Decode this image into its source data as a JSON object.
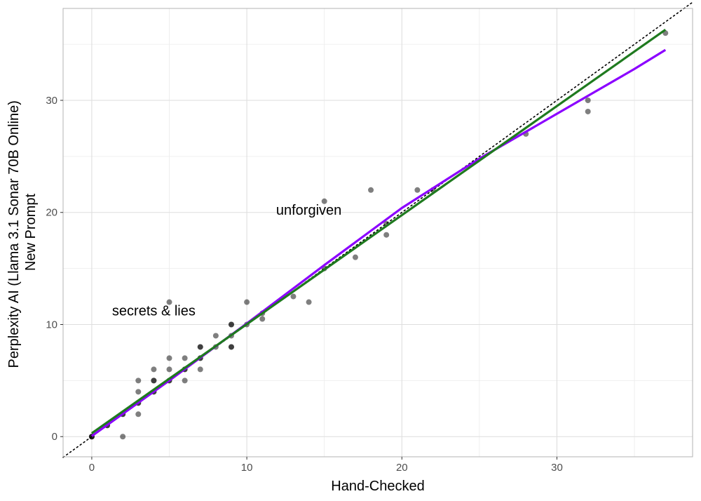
{
  "chart_data": {
    "type": "scatter",
    "xlabel": "Hand-Checked",
    "ylabel_lines": [
      "Perplexity AI (Llama 3.1 Sonar 70B Online)",
      "New Prompt"
    ],
    "xlim": [
      -1.85,
      38.75
    ],
    "ylim": [
      -1.8,
      38.2
    ],
    "x_ticks": [
      0,
      10,
      20,
      30
    ],
    "y_ticks": [
      0,
      10,
      20,
      30
    ],
    "x_tick_labels": [
      "0",
      "10",
      "20",
      "30"
    ],
    "y_tick_labels": [
      "0",
      "10",
      "20",
      "30"
    ],
    "grid": true,
    "legend": "none",
    "colors": {
      "points": "#000000",
      "smooth_fit": "#8b00ff",
      "linear_fit": "#1f7a1f",
      "identity": "#000000",
      "grid": "#ebebeb",
      "border": "#b3b3b3"
    },
    "points": [
      {
        "x": 0,
        "y": 0
      },
      {
        "x": 0,
        "y": 0
      },
      {
        "x": 0,
        "y": 0
      },
      {
        "x": 1,
        "y": 1
      },
      {
        "x": 1,
        "y": 1
      },
      {
        "x": 2,
        "y": 0
      },
      {
        "x": 2,
        "y": 2
      },
      {
        "x": 2,
        "y": 2
      },
      {
        "x": 3,
        "y": 2
      },
      {
        "x": 3,
        "y": 3
      },
      {
        "x": 3,
        "y": 3
      },
      {
        "x": 3,
        "y": 4
      },
      {
        "x": 3,
        "y": 5
      },
      {
        "x": 4,
        "y": 4
      },
      {
        "x": 4,
        "y": 4
      },
      {
        "x": 4,
        "y": 5
      },
      {
        "x": 4,
        "y": 5
      },
      {
        "x": 4,
        "y": 6
      },
      {
        "x": 5,
        "y": 5
      },
      {
        "x": 5,
        "y": 5
      },
      {
        "x": 5,
        "y": 6
      },
      {
        "x": 5,
        "y": 7
      },
      {
        "x": 5,
        "y": 12
      },
      {
        "x": 6,
        "y": 5
      },
      {
        "x": 6,
        "y": 6
      },
      {
        "x": 6,
        "y": 6
      },
      {
        "x": 6,
        "y": 7
      },
      {
        "x": 7,
        "y": 6
      },
      {
        "x": 7,
        "y": 7
      },
      {
        "x": 7,
        "y": 7
      },
      {
        "x": 7,
        "y": 8
      },
      {
        "x": 7,
        "y": 8
      },
      {
        "x": 8,
        "y": 8
      },
      {
        "x": 8,
        "y": 9
      },
      {
        "x": 9,
        "y": 8
      },
      {
        "x": 9,
        "y": 8
      },
      {
        "x": 9,
        "y": 9
      },
      {
        "x": 9,
        "y": 10
      },
      {
        "x": 9,
        "y": 10
      },
      {
        "x": 10,
        "y": 10
      },
      {
        "x": 10,
        "y": 12
      },
      {
        "x": 11,
        "y": 10.5
      },
      {
        "x": 11,
        "y": 11
      },
      {
        "x": 13,
        "y": 12.5
      },
      {
        "x": 14,
        "y": 12
      },
      {
        "x": 15,
        "y": 15
      },
      {
        "x": 15,
        "y": 21
      },
      {
        "x": 17,
        "y": 16
      },
      {
        "x": 18,
        "y": 22
      },
      {
        "x": 19,
        "y": 18
      },
      {
        "x": 19,
        "y": 19
      },
      {
        "x": 21,
        "y": 22
      },
      {
        "x": 22,
        "y": 22
      },
      {
        "x": 28,
        "y": 27
      },
      {
        "x": 32,
        "y": 29
      },
      {
        "x": 32,
        "y": 30
      },
      {
        "x": 37,
        "y": 36
      }
    ],
    "smooth_fit": {
      "x": [
        0,
        5,
        10,
        15,
        20,
        25,
        30,
        35,
        37
      ],
      "y": [
        0.05,
        5.0,
        10.1,
        15.3,
        20.4,
        24.8,
        28.8,
        32.8,
        34.5
      ]
    },
    "linear_fit": {
      "x": [
        0,
        37
      ],
      "y": [
        0.3,
        36.3
      ]
    },
    "identity_line": {
      "x": [
        -1.85,
        38.75
      ],
      "y": [
        -1.85,
        38.75
      ]
    },
    "annotations": [
      {
        "text": "secrets & lies",
        "x": 4,
        "y": 10.8
      },
      {
        "text": "unforgiven",
        "x": 14,
        "y": 19.8
      }
    ]
  }
}
